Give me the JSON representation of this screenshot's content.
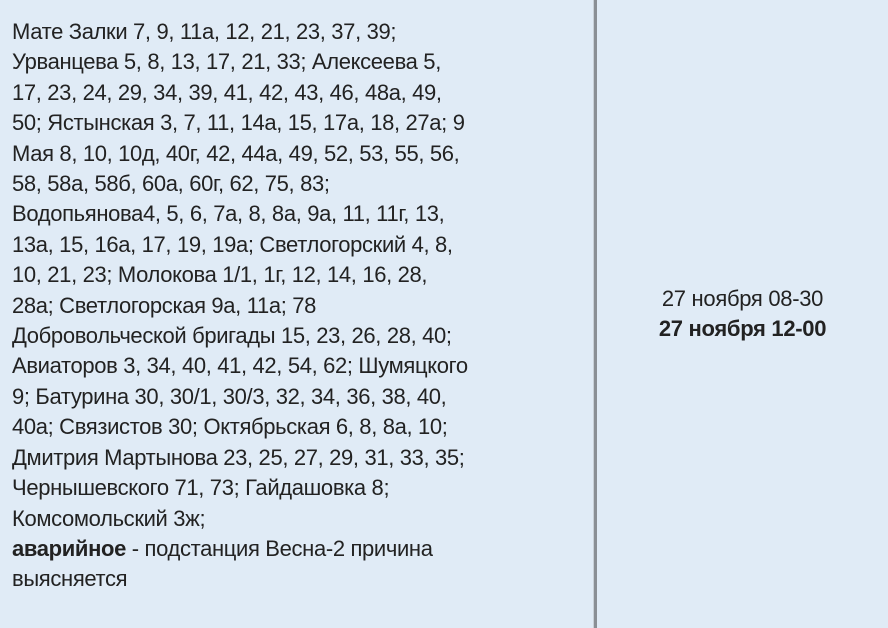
{
  "addresses_lines": [
    "Мате Залки 7, 9, 11а, 12, 21, 23, 37, 39;",
    "Урванцева 5, 8, 13, 17, 21, 33; Алексеева 5,",
    "17, 23, 24, 29, 34, 39, 41, 42, 43, 46, 48а, 49,",
    "50; Ястынская 3, 7, 11, 14а, 15, 17а, 18, 27а; 9",
    "Мая 8, 10, 10д, 40г, 42, 44а, 49, 52, 53, 55, 56,",
    "58, 58а, 58б, 60а, 60г, 62, 75, 83;",
    "Водопьянова4, 5, 6, 7а, 8, 8а, 9а, 11, 11г, 13,",
    "13а, 15, 16а, 17, 19, 19а; Светлогорский 4, 8,",
    "10, 21, 23; Молокова 1/1, 1г, 12, 14, 16, 28,",
    "28а; Светлогорская 9а, 11а; 78",
    "Добровольческой бригады 15, 23, 26, 28, 40;",
    "Авиаторов 3, 34, 40, 41, 42, 54, 62; Шумяцкого",
    "9; Батурина 30, 30/1, 30/3, 32, 34, 36, 38, 40,",
    "40а; Связистов 30; Октябрьская 6, 8, 8а, 10;",
    "Дмитрия Мартынова 23, 25, 27, 29, 31, 33, 35;",
    "Чернышевского 71, 73; Гайдашовка 8;",
    "Комсомольский 3ж;"
  ],
  "reason": {
    "type_label": "аварийное",
    "line1_rest": " - подстанция Весна-2 причина",
    "line2": "выясняется"
  },
  "times": {
    "start": "27 ноября 08-30",
    "end": "27 ноября 12-00"
  },
  "colors": {
    "background": "#e0ebf6",
    "divider": "#8a8f95"
  }
}
